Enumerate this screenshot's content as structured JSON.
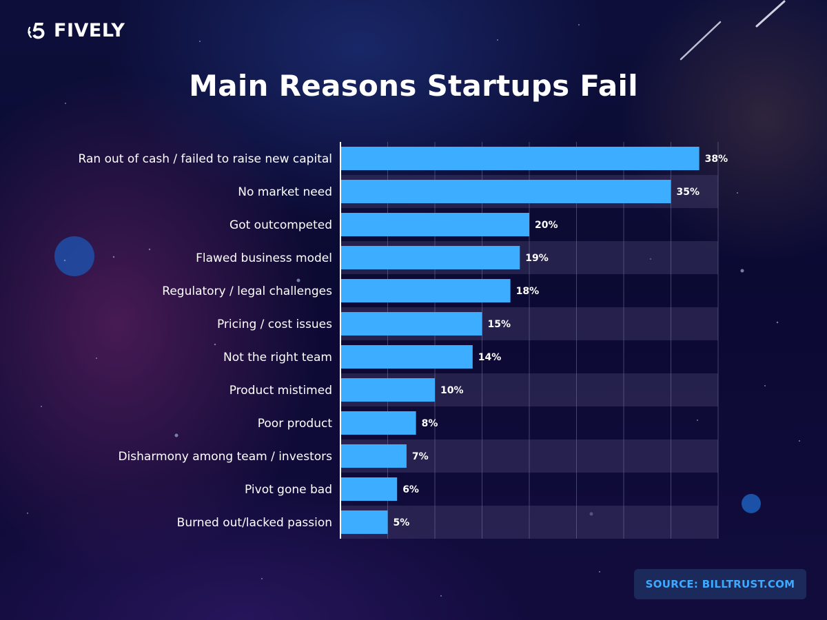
{
  "brand": {
    "name": "FIVELY",
    "logo_icon": "fively-five-logo-icon"
  },
  "source_label": "SOURCE: BILLTRUST.COM",
  "colors": {
    "bar": "#3daeff",
    "value_label": "#ffffff",
    "category_label": "#ffffff",
    "band": "#3a3560",
    "source_text": "#3fa9ff"
  },
  "chart_data": {
    "type": "bar",
    "orientation": "horizontal",
    "title": "Main Reasons Startups Fail",
    "xlabel": "",
    "ylabel": "",
    "xlim": [
      0,
      40
    ],
    "grid": true,
    "categories": [
      "Ran out of cash / failed to raise new capital",
      "No market need",
      "Got outcompeted",
      "Flawed business model",
      "Regulatory / legal challenges",
      "Pricing / cost issues",
      "Not the right team",
      "Product mistimed",
      "Poor product",
      "Disharmony among team / investors",
      "Pivot gone bad",
      "Burned out/lacked passion"
    ],
    "values": [
      38,
      35,
      20,
      19,
      18,
      15,
      14,
      10,
      8,
      7,
      6,
      5
    ],
    "value_labels": [
      "38%",
      "35%",
      "20%",
      "19%",
      "18%",
      "15%",
      "14%",
      "10%",
      "8%",
      "7%",
      "6%",
      "5%"
    ]
  }
}
